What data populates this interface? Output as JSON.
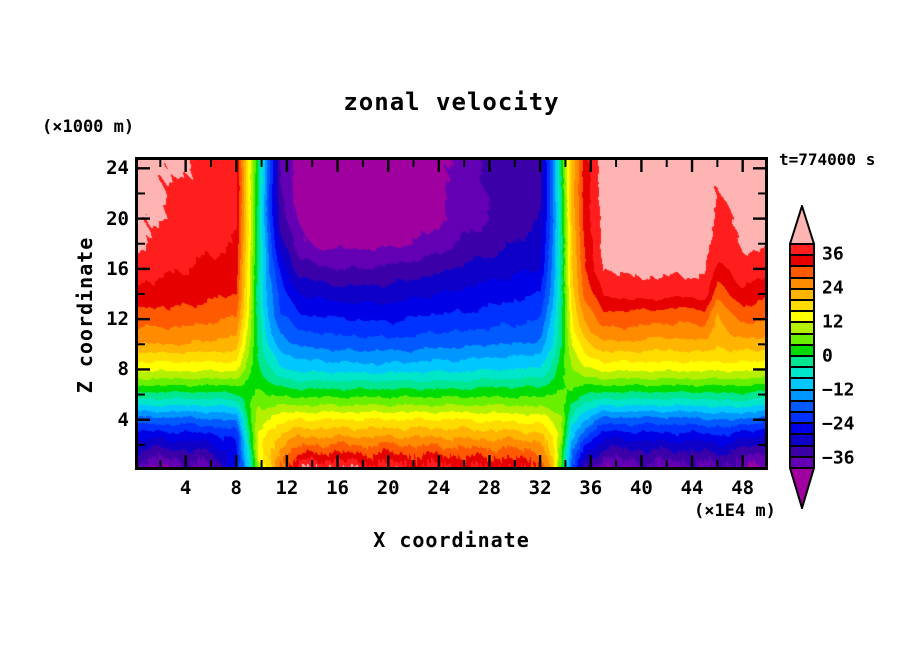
{
  "title": "zonal velocity",
  "timestamp": "t=774000 s",
  "axes": {
    "x": {
      "title": "X coordinate",
      "unit": "(×1E4 m)",
      "min": 0,
      "max": 50,
      "major_ticks": [
        4,
        8,
        12,
        16,
        20,
        24,
        28,
        32,
        36,
        40,
        44,
        48
      ],
      "minor_tick_step": 2
    },
    "z": {
      "title": "Z coordinate",
      "unit": "(×1000 m)",
      "min": 0,
      "max": 24.9,
      "major_ticks": [
        4,
        8,
        12,
        16,
        20,
        24
      ],
      "minor_tick_step": 2
    }
  },
  "colorbar": {
    "levels": [
      -40,
      -36,
      -32,
      -28,
      -24,
      -20,
      -16,
      -12,
      -8,
      -4,
      0,
      4,
      8,
      12,
      16,
      20,
      24,
      28,
      32,
      36,
      40
    ],
    "cell_colors": [
      "#6400B4",
      "#3C00A8",
      "#0F00C8",
      "#0000E6",
      "#0032FF",
      "#005AFF",
      "#0096FF",
      "#00C8FF",
      "#00E6C8",
      "#00E691",
      "#00DC00",
      "#69F000",
      "#B4F000",
      "#FFFF00",
      "#FFDC00",
      "#FFB400",
      "#FF8C00",
      "#FF5A00",
      "#E60000",
      "#FF1E1E"
    ],
    "under_color": "#A000A0",
    "over_color": "#FFB4B4",
    "labels": [
      36,
      24,
      12,
      0,
      -12,
      -24,
      -36
    ]
  },
  "chart_data": {
    "type": "filled_contour",
    "title": "zonal velocity",
    "xlabel": "X coordinate (×1E4 m)",
    "ylabel": "Z coordinate (×1000 m)",
    "time_label": "t=774000 s",
    "contour_interval": 4,
    "value_range": [
      -44,
      44
    ],
    "x_range": [
      0,
      50
    ],
    "z_range": [
      0,
      24.9
    ],
    "x": [
      0,
      2,
      4,
      6,
      8,
      9,
      9.7,
      10.5,
      11.5,
      13,
      14.5,
      16,
      18,
      20,
      22,
      24,
      26,
      28,
      30,
      32,
      33,
      33.7,
      34.5,
      35.5,
      37,
      39,
      41,
      43,
      45,
      46,
      47,
      48,
      49,
      50
    ],
    "z": [
      0,
      0.7,
      1.4,
      2.1,
      2.8,
      3.5,
      4.2,
      5,
      5.8,
      6.6,
      7.4,
      8.2,
      9,
      10,
      11,
      12.5,
      14,
      16,
      18,
      20,
      22,
      24.9
    ],
    "values": [
      [
        -39,
        -36,
        -33,
        -30,
        -26,
        -21,
        -16,
        -9,
        -3,
        3,
        9,
        14,
        18,
        24,
        27,
        31,
        35,
        38,
        41,
        41,
        41,
        42
      ],
      [
        -41,
        -37,
        -34,
        -30,
        -26,
        -21,
        -16,
        -9,
        -3,
        3,
        9,
        14,
        18,
        24,
        27,
        31,
        34,
        37,
        39,
        40,
        40,
        41
      ],
      [
        -38,
        -36,
        -33,
        -29,
        -25,
        -21,
        -16,
        -9,
        -3,
        3,
        9,
        14,
        18,
        24,
        27,
        31,
        34,
        36,
        38,
        39,
        39,
        41
      ],
      [
        -37,
        -35,
        -32,
        -29,
        -25,
        -20,
        -15,
        -9,
        -3,
        3,
        9,
        14,
        18,
        23,
        26,
        30,
        33,
        35,
        37,
        38,
        38,
        38
      ],
      [
        -25,
        -25,
        -25,
        -24,
        -22,
        -18,
        -14,
        -8,
        -2,
        3,
        9,
        14,
        18,
        22,
        25,
        29,
        32,
        34,
        36,
        37,
        37,
        37
      ],
      [
        -6,
        -5,
        -4,
        -3,
        -2,
        0,
        1,
        3,
        3,
        3,
        4,
        6,
        7,
        9,
        10,
        12,
        13,
        14,
        15,
        15,
        15,
        15
      ],
      [
        6,
        9,
        11,
        12,
        12,
        10,
        10,
        8,
        6,
        4,
        2,
        1,
        0,
        -1,
        -1,
        -2,
        -2,
        -2,
        -1,
        -1,
        0,
        1
      ],
      [
        16,
        18,
        18,
        18,
        17,
        14,
        12,
        8,
        5,
        2,
        -2,
        -4,
        -6,
        -8,
        -10,
        -12,
        -13,
        -15,
        -16,
        -18,
        -18,
        -17
      ],
      [
        26,
        28,
        26,
        23,
        21,
        17,
        14,
        9,
        4,
        0,
        -4,
        -8,
        -10,
        -14,
        -16,
        -20,
        -22,
        -25,
        -30,
        -34,
        -36,
        -36
      ],
      [
        41,
        36,
        31,
        27,
        23,
        19,
        15,
        9,
        4,
        -1,
        -6,
        -10,
        -13,
        -17,
        -20,
        -24,
        -28,
        -34,
        -39,
        -41,
        -42,
        -42
      ],
      [
        40,
        36,
        32,
        27,
        23,
        19,
        15,
        9,
        4,
        -1,
        -6,
        -10,
        -13,
        -17,
        -20,
        -25,
        -29,
        -35,
        -41,
        -42,
        -43,
        -43
      ],
      [
        42,
        37,
        32,
        28,
        23,
        19,
        15,
        9,
        4,
        -1,
        -6,
        -10,
        -14,
        -18,
        -21,
        -25,
        -30,
        -36,
        -41,
        -43,
        -43,
        -43
      ],
      [
        38,
        35,
        31,
        27,
        23,
        19,
        15,
        9,
        4,
        -1,
        -6,
        -11,
        -14,
        -18,
        -21,
        -26,
        -30,
        -36,
        -41,
        -42,
        -43,
        -43
      ],
      [
        39,
        36,
        32,
        28,
        23,
        19,
        15,
        9,
        4,
        -1,
        -6,
        -11,
        -14,
        -18,
        -22,
        -26,
        -30,
        -35,
        -41,
        -42,
        -42,
        -42
      ],
      [
        37,
        34,
        31,
        27,
        23,
        19,
        15,
        9,
        4,
        -1,
        -6,
        -10,
        -14,
        -18,
        -21,
        -25,
        -29,
        -34,
        -40,
        -42,
        -42,
        -42
      ],
      [
        38,
        35,
        31,
        27,
        23,
        19,
        15,
        9,
        4,
        -1,
        -6,
        -10,
        -13,
        -17,
        -20,
        -24,
        -28,
        -33,
        -38,
        -41,
        -41,
        -41
      ],
      [
        36,
        34,
        30,
        26,
        22,
        19,
        15,
        9,
        4,
        -1,
        -6,
        -10,
        -13,
        -17,
        -20,
        -24,
        -27,
        -31,
        -35,
        -38,
        -38,
        -38
      ],
      [
        37,
        34,
        30,
        26,
        22,
        18,
        14,
        9,
        4,
        0,
        -5,
        -9,
        -12,
        -16,
        -19,
        -23,
        -26,
        -30,
        -34,
        -36,
        -36,
        -35
      ],
      [
        35,
        33,
        29,
        26,
        22,
        18,
        14,
        9,
        4,
        0,
        -5,
        -9,
        -12,
        -16,
        -19,
        -22,
        -25,
        -29,
        -32,
        -34,
        -35,
        -34
      ],
      [
        34,
        32,
        29,
        25,
        21,
        17,
        13,
        8,
        4,
        0,
        -4,
        -8,
        -11,
        -15,
        -18,
        -21,
        -24,
        -28,
        -30,
        -32,
        -33,
        -32
      ],
      [
        20,
        19,
        17,
        16,
        15,
        13,
        11,
        7,
        5,
        2,
        -1,
        -3,
        -5,
        -8,
        -9,
        -11,
        -13,
        -15,
        -16,
        -17,
        -16,
        -16
      ],
      [
        2,
        3,
        4,
        6,
        8,
        8,
        8,
        6,
        6,
        4,
        3,
        2,
        1,
        0,
        0,
        -1,
        -2,
        -2,
        -2,
        -1,
        0,
        0
      ],
      [
        -20,
        -18,
        -15,
        -12,
        -9,
        -7,
        -4,
        -2,
        2,
        4,
        6,
        8,
        10,
        12,
        14,
        16,
        18,
        19,
        20,
        21,
        21,
        21
      ],
      [
        -32,
        -29,
        -26,
        -23,
        -19,
        -15,
        -11,
        -6,
        -1,
        3,
        8,
        12,
        15,
        18,
        22,
        25,
        29,
        32,
        32,
        33,
        34,
        34
      ],
      [
        -42,
        -38,
        -34,
        -30,
        -26,
        -21,
        -16,
        -9,
        -3,
        3,
        9,
        14,
        18,
        23,
        27,
        32,
        36,
        40,
        41,
        42,
        42,
        42
      ],
      [
        -38,
        -36,
        -33,
        -30,
        -26,
        -21,
        -16,
        -9,
        -3,
        3,
        9,
        14,
        18,
        23,
        27,
        31,
        38,
        41,
        42,
        42,
        42,
        42
      ],
      [
        -38,
        -36,
        -33,
        -29,
        -25,
        -21,
        -16,
        -9,
        -3,
        3,
        9,
        14,
        18,
        22,
        26,
        31,
        38,
        41,
        41,
        42,
        42,
        42
      ],
      [
        -39,
        -36,
        -33,
        -29,
        -25,
        -21,
        -16,
        -9,
        -3,
        3,
        9,
        14,
        18,
        22,
        26,
        30,
        37,
        41,
        41,
        42,
        42,
        42
      ],
      [
        -38,
        -35,
        -32,
        -29,
        -25,
        -20,
        -15,
        -9,
        -3,
        3,
        9,
        14,
        18,
        23,
        27,
        31,
        38,
        41,
        42,
        42,
        42,
        42
      ],
      [
        -37,
        -35,
        -32,
        -28,
        -24,
        -20,
        -15,
        -8,
        -2,
        3,
        9,
        14,
        18,
        20,
        21,
        24,
        30,
        35,
        38,
        39,
        40,
        41
      ],
      [
        -38,
        -35,
        -32,
        -28,
        -24,
        -19,
        -14,
        -8,
        -2,
        3,
        9,
        14,
        18,
        22,
        25,
        28,
        32,
        36,
        39,
        40,
        41,
        41
      ],
      [
        -40,
        -37,
        -34,
        -30,
        -26,
        -21,
        -15,
        -8,
        -2,
        3,
        9,
        14,
        18,
        22,
        26,
        30,
        35,
        39,
        41,
        41,
        42,
        42
      ],
      [
        -41,
        -38,
        -35,
        -31,
        -27,
        -22,
        -16,
        -9,
        -3,
        3,
        9,
        14,
        18,
        22,
        26,
        30,
        34,
        38,
        41,
        42,
        42,
        42
      ],
      [
        -42,
        -39,
        -36,
        -32,
        -28,
        -23,
        -17,
        -10,
        -4,
        2,
        8,
        13,
        17,
        21,
        25,
        29,
        33,
        37,
        40,
        41,
        42,
        42
      ]
    ]
  }
}
